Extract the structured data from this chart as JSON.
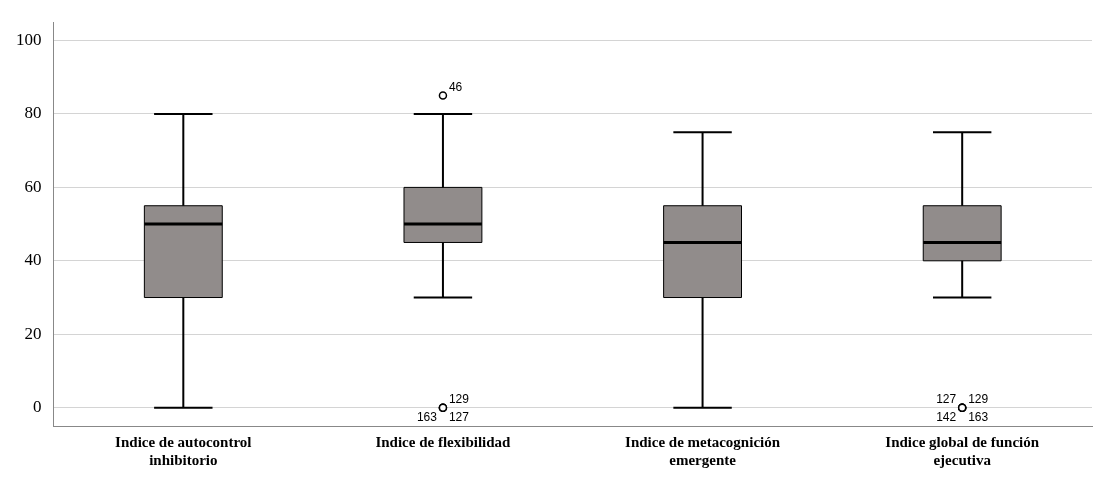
{
  "chart_data": {
    "type": "box",
    "categories": [
      "Indice de autocontrol inhibitorio",
      "Indice de flexibilidad",
      "Indice de metacognición emergente",
      "Indice global de función ejecutiva"
    ],
    "color": "#918c8b",
    "boxes": [
      {
        "low": 0,
        "q1": 30,
        "median": 50,
        "q3": 55,
        "high": 80
      },
      {
        "low": 30,
        "q1": 45,
        "median": 50,
        "q3": 60,
        "high": 80,
        "outliers": [
          85,
          0,
          0,
          0
        ]
      },
      {
        "low": 0,
        "q1": 30,
        "median": 45,
        "q3": 55,
        "high": 75
      },
      {
        "low": 30,
        "q1": 40,
        "median": 45,
        "q3": 55,
        "high": 75,
        "outliers": [
          0,
          0,
          0,
          0
        ]
      }
    ],
    "ylim": [
      -5,
      105
    ],
    "yticks": [
      0,
      20,
      40,
      60,
      80,
      100
    ],
    "grid": "y",
    "annotations": [
      "46",
      "129",
      "163",
      "127",
      "129",
      "142",
      "163",
      "127"
    ]
  }
}
